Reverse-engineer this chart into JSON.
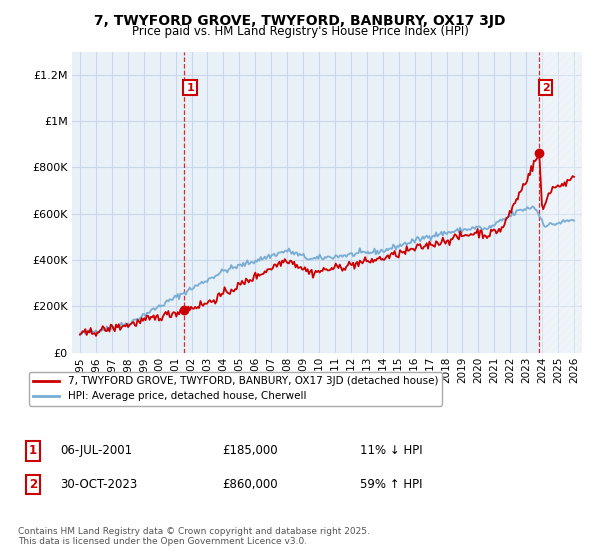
{
  "title": "7, TWYFORD GROVE, TWYFORD, BANBURY, OX17 3JD",
  "subtitle": "Price paid vs. HM Land Registry's House Price Index (HPI)",
  "ylim": [
    0,
    1300000
  ],
  "yticks": [
    0,
    200000,
    400000,
    600000,
    800000,
    1000000,
    1200000
  ],
  "ytick_labels": [
    "£0",
    "£200K",
    "£400K",
    "£600K",
    "£800K",
    "£1M",
    "£1.2M"
  ],
  "xlim_start": 1994.5,
  "xlim_end": 2026.5,
  "sale1_x": 2001.52,
  "sale1_y": 185000,
  "sale2_x": 2023.83,
  "sale2_y": 860000,
  "sale_color": "#cc0000",
  "hpi_color": "#7aadd4",
  "annotation_color": "#cc0000",
  "chart_bg": "#e8f0f8",
  "legend_sale_label": "7, TWYFORD GROVE, TWYFORD, BANBURY, OX17 3JD (detached house)",
  "legend_hpi_label": "HPI: Average price, detached house, Cherwell",
  "footnote1": "Contains HM Land Registry data © Crown copyright and database right 2025.",
  "footnote2": "This data is licensed under the Open Government Licence v3.0.",
  "ann1_label": "1",
  "ann1_date": "06-JUL-2001",
  "ann1_price": "£185,000",
  "ann1_hpi": "11% ↓ HPI",
  "ann2_label": "2",
  "ann2_date": "30-OCT-2023",
  "ann2_price": "£860,000",
  "ann2_hpi": "59% ↑ HPI",
  "background_color": "#ffffff",
  "grid_color": "#c8d8e8"
}
